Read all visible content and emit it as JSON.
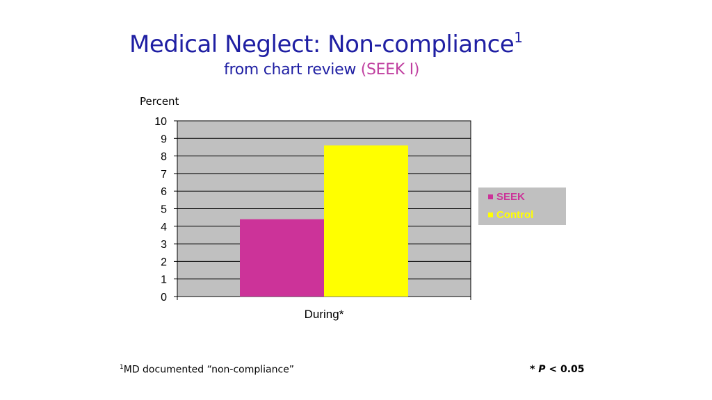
{
  "title": {
    "main": "Medical Neglect: Non-compliance",
    "superscript": "1",
    "subtitle_prefix": "from chart review ",
    "subtitle_highlight": "(SEEK I)"
  },
  "colors": {
    "title": "#1f1fa3",
    "highlight": "#c040a0",
    "plot_background": "#c0c0c0",
    "seek": "#cc3399",
    "control": "#ffff00"
  },
  "chart_data": {
    "type": "bar",
    "categories": [
      "During*"
    ],
    "series": [
      {
        "name": "SEEK",
        "values": [
          4.4
        ],
        "color": "#cc3399"
      },
      {
        "name": "Control",
        "values": [
          8.6
        ],
        "color": "#ffff00"
      }
    ],
    "xlabel": "",
    "ylabel": "Percent",
    "ylim": [
      0,
      10
    ],
    "yticks": [
      0,
      1,
      2,
      3,
      4,
      5,
      6,
      7,
      8,
      9,
      10
    ],
    "grid": true,
    "legend_position": "right"
  },
  "footnotes": {
    "left_sup": "1",
    "left_text": "MD documented “non-compliance”",
    "right_star": "* ",
    "right_p": "P",
    "right_rest": " < 0.05"
  }
}
